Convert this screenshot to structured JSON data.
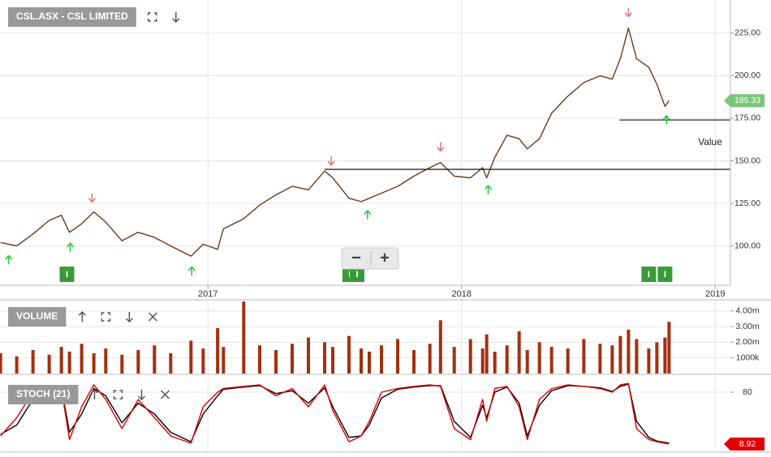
{
  "chart_data": [
    {
      "type": "line",
      "title": "CSL.ASX - CSL LIMITED",
      "x": [
        2016.182,
        2016.246,
        2016.31,
        2016.374,
        2016.422,
        2016.454,
        2016.502,
        2016.55,
        2016.597,
        2016.661,
        2016.725,
        2016.789,
        2016.853,
        2016.933,
        2016.981,
        2017.038,
        2017.061,
        2017.141,
        2017.204,
        2017.268,
        2017.332,
        2017.396,
        2017.46,
        2017.492,
        2017.556,
        2017.604,
        2017.636,
        2017.684,
        2017.748,
        2017.812,
        2017.875,
        2017.917,
        2017.971,
        2018.035,
        2018.083,
        2018.099,
        2018.131,
        2018.179,
        2018.227,
        2018.259,
        2018.307,
        2018.355,
        2018.419,
        2018.482,
        2018.546,
        2018.594,
        2018.626,
        2018.658,
        2018.69,
        2018.738,
        2018.77,
        2018.802,
        2018.818
      ],
      "values": [
        102,
        100,
        107,
        115,
        118,
        108,
        113,
        120,
        114,
        103,
        108,
        105,
        100,
        94,
        101,
        98,
        110,
        116,
        124,
        130,
        135,
        133,
        144,
        140,
        128,
        126,
        128,
        131,
        135,
        141,
        146,
        149,
        141,
        140,
        146,
        140,
        152,
        165,
        163,
        157,
        163,
        178,
        188,
        196,
        200,
        198,
        210,
        228,
        210,
        205,
        195,
        182,
        185.33
      ],
      "color": "#6b3a1a",
      "last_value_color": "#7bc67b",
      "xlim": [
        2016.18,
        2019.06
      ],
      "xticks": [
        2017,
        2018,
        2019
      ],
      "ylim": [
        76.9,
        244.5
      ],
      "yticks": [
        {
          "value": 100,
          "label": "100.00"
        },
        {
          "value": 125,
          "label": "125.00"
        },
        {
          "value": 150,
          "label": "150.00"
        },
        {
          "value": 175,
          "label": "175.00"
        },
        {
          "value": 200,
          "label": "200.00"
        },
        {
          "value": 225,
          "label": "225.00"
        }
      ],
      "grid": true,
      "hlines": [
        {
          "value": 145,
          "from": 2017.46
        },
        {
          "value": 174,
          "from": 2018.623
        }
      ],
      "annotation": "Value",
      "signals": {
        "up": [
          2016.214,
          2016.457,
          2016.936,
          2017.629,
          2018.105,
          2018.808
        ],
        "down": [
          2016.543,
          2017.486,
          2017.917,
          2018.658
        ],
        "up_color": "#2ecc40",
        "down_color": "#e07a7a"
      },
      "markers": [
        {
          "x": 2016.444,
          "label": "I"
        },
        {
          "x": 2017.559,
          "label": "I"
        },
        {
          "x": 2017.588,
          "label": "I"
        },
        {
          "x": 2018.738,
          "label": "I"
        },
        {
          "x": 2018.802,
          "label": "I"
        }
      ],
      "marker_color": "#3a9a3a"
    },
    {
      "type": "bar",
      "title": "VOLUME",
      "x": [
        2016.182,
        2016.246,
        2016.31,
        2016.374,
        2016.422,
        2016.454,
        2016.502,
        2016.55,
        2016.597,
        2016.661,
        2016.725,
        2016.789,
        2016.853,
        2016.933,
        2016.981,
        2017.038,
        2017.061,
        2017.141,
        2017.204,
        2017.268,
        2017.332,
        2017.396,
        2017.46,
        2017.492,
        2017.556,
        2017.604,
        2017.636,
        2017.684,
        2017.748,
        2017.812,
        2017.875,
        2017.917,
        2017.971,
        2018.035,
        2018.083,
        2018.099,
        2018.131,
        2018.179,
        2018.227,
        2018.259,
        2018.307,
        2018.355,
        2018.419,
        2018.482,
        2018.546,
        2018.594,
        2018.626,
        2018.658,
        2018.69,
        2018.738,
        2018.77,
        2018.802,
        2018.818
      ],
      "values": [
        1300000,
        1100000,
        1500000,
        1200000,
        1700000,
        1400000,
        1900000,
        1300000,
        1600000,
        1200000,
        1500000,
        1800000,
        1300000,
        2100000,
        1600000,
        2900000,
        1700000,
        4600000,
        1800000,
        1500000,
        1900000,
        2300000,
        2000000,
        1700000,
        2400000,
        1600000,
        1400000,
        1800000,
        2200000,
        1500000,
        1900000,
        3400000,
        1700000,
        2200000,
        1600000,
        2500000,
        1400000,
        1800000,
        2700000,
        1500000,
        2000000,
        1700000,
        1600000,
        2200000,
        1900000,
        1800000,
        2400000,
        2800000,
        2200000,
        1600000,
        2000000,
        2300000,
        3300000
      ],
      "color": "#a2300f",
      "ylim": [
        0,
        4710000
      ],
      "yticks": [
        {
          "value": 1000000,
          "label": "1000k"
        },
        {
          "value": 2000000,
          "label": "2.00m"
        },
        {
          "value": 3000000,
          "label": "3.00m"
        },
        {
          "value": 4000000,
          "label": "4.00m"
        }
      ],
      "grid": true
    },
    {
      "type": "line",
      "title": "STOCH (21)",
      "x": [
        2016.182,
        2016.246,
        2016.31,
        2016.374,
        2016.422,
        2016.454,
        2016.502,
        2016.55,
        2016.597,
        2016.661,
        2016.725,
        2016.789,
        2016.853,
        2016.933,
        2016.981,
        2017.038,
        2017.061,
        2017.141,
        2017.204,
        2017.268,
        2017.332,
        2017.396,
        2017.46,
        2017.492,
        2017.556,
        2017.604,
        2017.636,
        2017.684,
        2017.748,
        2017.812,
        2017.875,
        2017.917,
        2017.971,
        2018.035,
        2018.083,
        2018.099,
        2018.131,
        2018.179,
        2018.227,
        2018.259,
        2018.307,
        2018.355,
        2018.419,
        2018.482,
        2018.546,
        2018.594,
        2018.626,
        2018.658,
        2018.69,
        2018.738,
        2018.77,
        2018.802,
        2018.818
      ],
      "series": [
        {
          "color": "#000000",
          "values": [
            22,
            35,
            70,
            86,
            86,
            25,
            50,
            85,
            75,
            38,
            65,
            50,
            25,
            12,
            50,
            75,
            84,
            87,
            89,
            78,
            82,
            65,
            86,
            60,
            18,
            20,
            35,
            72,
            84,
            87,
            89,
            89,
            40,
            18,
            62,
            45,
            80,
            87,
            65,
            20,
            62,
            82,
            89,
            88,
            86,
            81,
            88,
            91,
            40,
            18,
            13,
            11,
            10
          ]
        },
        {
          "color": "#e00000",
          "values": [
            20,
            45,
            80,
            88,
            85,
            15,
            60,
            90,
            70,
            30,
            70,
            45,
            20,
            10,
            60,
            80,
            85,
            88,
            90,
            75,
            85,
            60,
            90,
            55,
            12,
            20,
            40,
            80,
            85,
            88,
            90,
            88,
            30,
            15,
            70,
            40,
            85,
            88,
            60,
            15,
            70,
            85,
            90,
            88,
            85,
            80,
            90,
            92,
            30,
            15,
            12,
            10,
            8.92
          ]
        }
      ],
      "ylim": [
        0,
        100
      ],
      "yticks": [
        80
      ],
      "grid": true
    }
  ],
  "controls": {
    "zoom_out": "−",
    "zoom_in": "+"
  }
}
